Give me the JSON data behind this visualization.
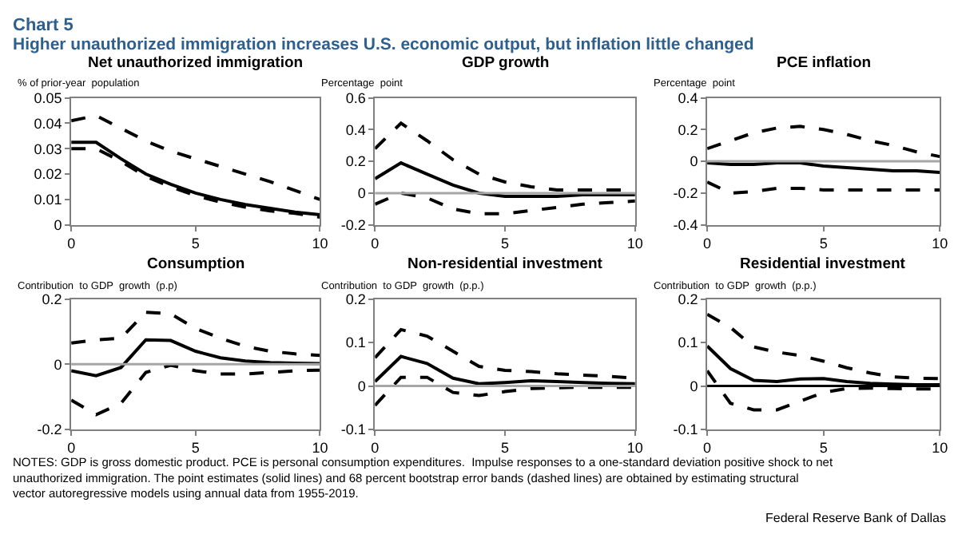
{
  "chart_data": [
    {
      "type": "line",
      "title": "Net unauthorized immigration",
      "ylabel": "% of prior-year  population",
      "x": [
        0,
        1,
        2,
        3,
        4,
        5,
        6,
        7,
        8,
        9,
        10
      ],
      "xlim": [
        0,
        10
      ],
      "xticks": [
        0,
        5,
        10
      ],
      "ylim": [
        0,
        0.05
      ],
      "yticks": [
        0,
        0.01,
        0.02,
        0.03,
        0.04,
        0.05
      ],
      "series": [
        {
          "color": "#000000",
          "line_style": "dashed",
          "values": [
            0.041,
            0.043,
            0.038,
            0.033,
            0.029,
            0.026,
            0.023,
            0.02,
            0.017,
            0.0135,
            0.01
          ]
        },
        {
          "color": "#000000",
          "line_style": "solid",
          "values": [
            0.0325,
            0.0325,
            0.026,
            0.02,
            0.016,
            0.0125,
            0.01,
            0.008,
            0.0065,
            0.005,
            0.004
          ]
        },
        {
          "color": "#000000",
          "line_style": "dashed",
          "values": [
            0.03,
            0.03,
            0.025,
            0.019,
            0.015,
            0.0115,
            0.009,
            0.007,
            0.0055,
            0.0045,
            0.003
          ]
        }
      ]
    },
    {
      "type": "line",
      "title": "GDP growth",
      "ylabel": "Percentage  point",
      "x": [
        0,
        1,
        2,
        3,
        4,
        5,
        6,
        7,
        8,
        9,
        10
      ],
      "xlim": [
        0,
        10
      ],
      "xticks": [
        0,
        5,
        10
      ],
      "ylim": [
        -0.2,
        0.6
      ],
      "yticks": [
        -0.2,
        0,
        0.2,
        0.4,
        0.6
      ],
      "ref_lines": [
        {
          "axis": "y",
          "value": 0,
          "color": "#a6a6a6"
        }
      ],
      "series": [
        {
          "color": "#000000",
          "line_style": "dashed",
          "values": [
            0.28,
            0.44,
            0.33,
            0.21,
            0.12,
            0.07,
            0.04,
            0.02,
            0.02,
            0.02,
            0.02
          ]
        },
        {
          "color": "#000000",
          "line_style": "solid",
          "values": [
            0.09,
            0.19,
            0.12,
            0.05,
            0.0,
            -0.02,
            -0.02,
            -0.02,
            -0.01,
            -0.01,
            -0.01
          ]
        },
        {
          "color": "#000000",
          "line_style": "dashed",
          "values": [
            -0.07,
            0.0,
            -0.03,
            -0.1,
            -0.13,
            -0.13,
            -0.11,
            -0.09,
            -0.07,
            -0.06,
            -0.05
          ]
        }
      ]
    },
    {
      "type": "line",
      "title": "PCE inflation",
      "ylabel": "Percentage  point",
      "x": [
        0,
        1,
        2,
        3,
        4,
        5,
        6,
        7,
        8,
        9,
        10
      ],
      "xlim": [
        0,
        10
      ],
      "xticks": [
        0,
        5,
        10
      ],
      "ylim": [
        -0.4,
        0.4
      ],
      "yticks": [
        -0.4,
        -0.2,
        0,
        0.2,
        0.4
      ],
      "ref_lines": [
        {
          "axis": "y",
          "value": 0,
          "color": "#a6a6a6"
        }
      ],
      "series": [
        {
          "color": "#000000",
          "line_style": "dashed",
          "values": [
            0.08,
            0.13,
            0.18,
            0.21,
            0.22,
            0.2,
            0.17,
            0.13,
            0.1,
            0.06,
            0.03
          ]
        },
        {
          "color": "#000000",
          "line_style": "solid",
          "values": [
            -0.01,
            -0.02,
            -0.02,
            -0.01,
            -0.01,
            -0.03,
            -0.04,
            -0.05,
            -0.06,
            -0.06,
            -0.07
          ]
        },
        {
          "color": "#000000",
          "line_style": "dashed",
          "values": [
            -0.13,
            -0.2,
            -0.19,
            -0.17,
            -0.17,
            -0.18,
            -0.18,
            -0.18,
            -0.18,
            -0.18,
            -0.18
          ]
        }
      ]
    },
    {
      "type": "line",
      "title": "Consumption",
      "ylabel": "Contribution  to GDP  growth  (p.p)",
      "x": [
        0,
        1,
        2,
        3,
        4,
        5,
        6,
        7,
        8,
        9,
        10
      ],
      "xlim": [
        0,
        10
      ],
      "xticks": [
        0,
        5,
        10
      ],
      "ylim": [
        -0.2,
        0.2
      ],
      "yticks": [
        -0.2,
        0,
        0.2
      ],
      "ref_lines": [
        {
          "axis": "y",
          "value": 0,
          "color": "#a6a6a6"
        }
      ],
      "series": [
        {
          "color": "#000000",
          "line_style": "dashed",
          "values": [
            0.065,
            0.075,
            0.08,
            0.16,
            0.155,
            0.11,
            0.08,
            0.055,
            0.04,
            0.032,
            0.027
          ]
        },
        {
          "color": "#000000",
          "line_style": "solid",
          "values": [
            -0.02,
            -0.035,
            -0.01,
            0.075,
            0.073,
            0.04,
            0.02,
            0.01,
            0.005,
            0.003,
            0.002
          ]
        },
        {
          "color": "#000000",
          "line_style": "dashed",
          "values": [
            -0.11,
            -0.155,
            -0.12,
            -0.025,
            -0.003,
            -0.02,
            -0.03,
            -0.03,
            -0.025,
            -0.02,
            -0.018
          ]
        }
      ]
    },
    {
      "type": "line",
      "title": "Non-residential investment",
      "ylabel": "Contribution  to GDP  growth  (p.p.)",
      "x": [
        0,
        1,
        2,
        3,
        4,
        5,
        6,
        7,
        8,
        9,
        10
      ],
      "xlim": [
        0,
        10
      ],
      "xticks": [
        0,
        5,
        10
      ],
      "ylim": [
        -0.1,
        0.2
      ],
      "yticks": [
        -0.1,
        0,
        0.1,
        0.2
      ],
      "ref_lines": [
        {
          "axis": "y",
          "value": 0,
          "color": "#a6a6a6"
        }
      ],
      "series": [
        {
          "color": "#000000",
          "line_style": "dashed",
          "values": [
            0.065,
            0.13,
            0.115,
            0.08,
            0.045,
            0.036,
            0.033,
            0.028,
            0.025,
            0.022,
            0.018
          ]
        },
        {
          "color": "#000000",
          "line_style": "solid",
          "values": [
            0.01,
            0.068,
            0.052,
            0.018,
            0.005,
            0.008,
            0.012,
            0.01,
            0.008,
            0.006,
            0.005
          ]
        },
        {
          "color": "#000000",
          "line_style": "dashed",
          "values": [
            -0.045,
            0.02,
            0.02,
            -0.015,
            -0.022,
            -0.013,
            -0.006,
            -0.004,
            -0.003,
            -0.003,
            -0.003
          ]
        }
      ]
    },
    {
      "type": "line",
      "title": "Residential investment",
      "ylabel": "Contribution  to GDP  growth  (p.p.)",
      "x": [
        0,
        1,
        2,
        3,
        4,
        5,
        6,
        7,
        8,
        9,
        10
      ],
      "xlim": [
        0,
        10
      ],
      "xticks": [
        0,
        5,
        10
      ],
      "ylim": [
        -0.1,
        0.2
      ],
      "yticks": [
        -0.1,
        0,
        0.1,
        0.2
      ],
      "ref_lines": [
        {
          "axis": "y",
          "value": 0,
          "color": "#000000"
        }
      ],
      "series": [
        {
          "color": "#000000",
          "line_style": "dashed",
          "values": [
            0.165,
            0.135,
            0.09,
            0.078,
            0.07,
            0.057,
            0.042,
            0.03,
            0.021,
            0.018,
            0.017
          ]
        },
        {
          "color": "#000000",
          "line_style": "solid",
          "values": [
            0.092,
            0.04,
            0.013,
            0.01,
            0.016,
            0.017,
            0.01,
            0.006,
            0.004,
            0.003,
            0.003
          ]
        },
        {
          "color": "#000000",
          "line_style": "dashed",
          "values": [
            0.035,
            -0.04,
            -0.055,
            -0.055,
            -0.035,
            -0.015,
            -0.006,
            -0.005,
            -0.006,
            -0.007,
            -0.007
          ]
        }
      ]
    },
    {
      "type": "other",
      "title": "Chart 5",
      "subtitle": "Higher unauthorized immigration increases U.S. economic output, but inflation little changed",
      "annotations": [
        "NOTES: GDP is gross domestic product. PCE is personal consumption expenditures.  Impulse responses to a one-standard deviation positive shock to net unauthorized immigration. The point estimates (solid lines) and 68 percent bootstrap error bands (dashed lines) are obtained by estimating structural vector autoregressive models using annual data from 1955-2019.",
        "Federal Reserve Bank of Dallas"
      ]
    }
  ]
}
